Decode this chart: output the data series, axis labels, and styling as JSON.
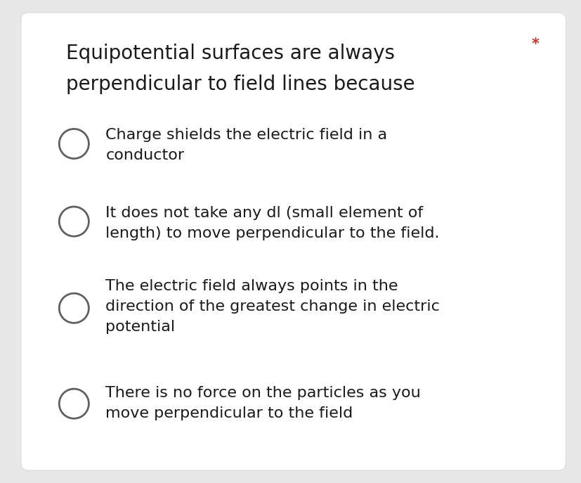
{
  "background_outer": "#e8e8e8",
  "card_bg": "#ffffff",
  "title_line1": "Equipotential surfaces are always",
  "title_line2": "perpendicular to field lines because",
  "asterisk": "*",
  "asterisk_color": "#c0392b",
  "options": [
    "Charge shields the electric field in a\nconductor",
    "It does not take any dl (small element of\nlength) to move perpendicular to the field.",
    "The electric field always points in the\ndirection of the greatest change in electric\npotential",
    "There is no force on the particles as you\nmove perpendicular to the field"
  ],
  "title_fontsize": 20,
  "option_fontsize": 16,
  "asterisk_fontsize": 15,
  "text_color": "#1a1a1a",
  "circle_edge_color": "#606060",
  "circle_lw": 2.0,
  "outer_bg": "#e8e8e8"
}
